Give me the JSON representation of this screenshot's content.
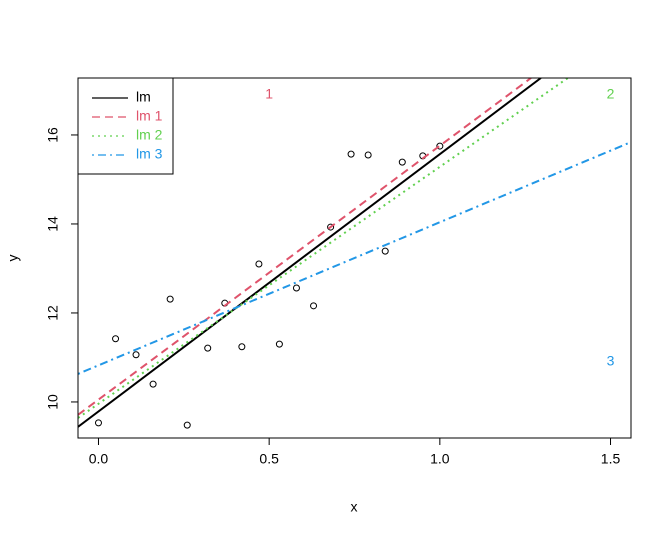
{
  "chart_data": {
    "type": "scatter",
    "xlabel": "x",
    "ylabel": "y",
    "xlim": [
      -0.06,
      1.56
    ],
    "ylim": [
      9.19,
      17.28
    ],
    "xticks": [
      {
        "value": 0,
        "label": "0.0"
      },
      {
        "value": 0.5,
        "label": "0.5"
      },
      {
        "value": 1,
        "label": "1.0"
      },
      {
        "value": 1.5,
        "label": "1.5"
      }
    ],
    "yticks": [
      10,
      12,
      14,
      16
    ],
    "points": {
      "color": "#000000",
      "x": [
        0,
        0.05,
        0.11,
        0.16,
        0.21,
        0.26,
        0.32,
        0.37,
        0.42,
        0.47,
        0.53,
        0.58,
        0.63,
        0.68,
        0.74,
        0.79,
        0.84,
        0.89,
        0.95,
        1.0
      ],
      "values": [
        9.53,
        11.42,
        11.06,
        10.4,
        12.31,
        9.48,
        11.21,
        12.22,
        11.24,
        13.1,
        11.3,
        12.56,
        12.16,
        13.93,
        15.57,
        15.55,
        13.39,
        15.39,
        15.53,
        15.75
      ]
    },
    "series": [
      {
        "name": "lm",
        "color": "#000000",
        "dash": "solid",
        "x": [
          -0.06,
          1.296
        ],
        "values": [
          9.44,
          17.28
        ]
      },
      {
        "name": "lm 1",
        "color": "#DF536B",
        "dash": "dashed",
        "x": [
          -0.06,
          1.267
        ],
        "values": [
          9.71,
          17.28
        ]
      },
      {
        "name": "lm 2",
        "color": "#61D04F",
        "dash": "dotted",
        "x": [
          -0.06,
          1.375
        ],
        "values": [
          9.64,
          17.28
        ]
      },
      {
        "name": "lm 3",
        "color": "#2297E6",
        "dash": "dotdash",
        "x": [
          -0.06,
          1.56
        ],
        "values": [
          10.63,
          15.84
        ]
      }
    ],
    "legend": "top-left",
    "annotations": [
      {
        "text": "1",
        "x": 0.5,
        "y": 16.9,
        "color": "#DF536B"
      },
      {
        "text": "2",
        "x": 1.5,
        "y": 16.9,
        "color": "#61D04F"
      },
      {
        "text": "3",
        "x": 1.5,
        "y": 10.9,
        "color": "#2297E6"
      }
    ]
  }
}
